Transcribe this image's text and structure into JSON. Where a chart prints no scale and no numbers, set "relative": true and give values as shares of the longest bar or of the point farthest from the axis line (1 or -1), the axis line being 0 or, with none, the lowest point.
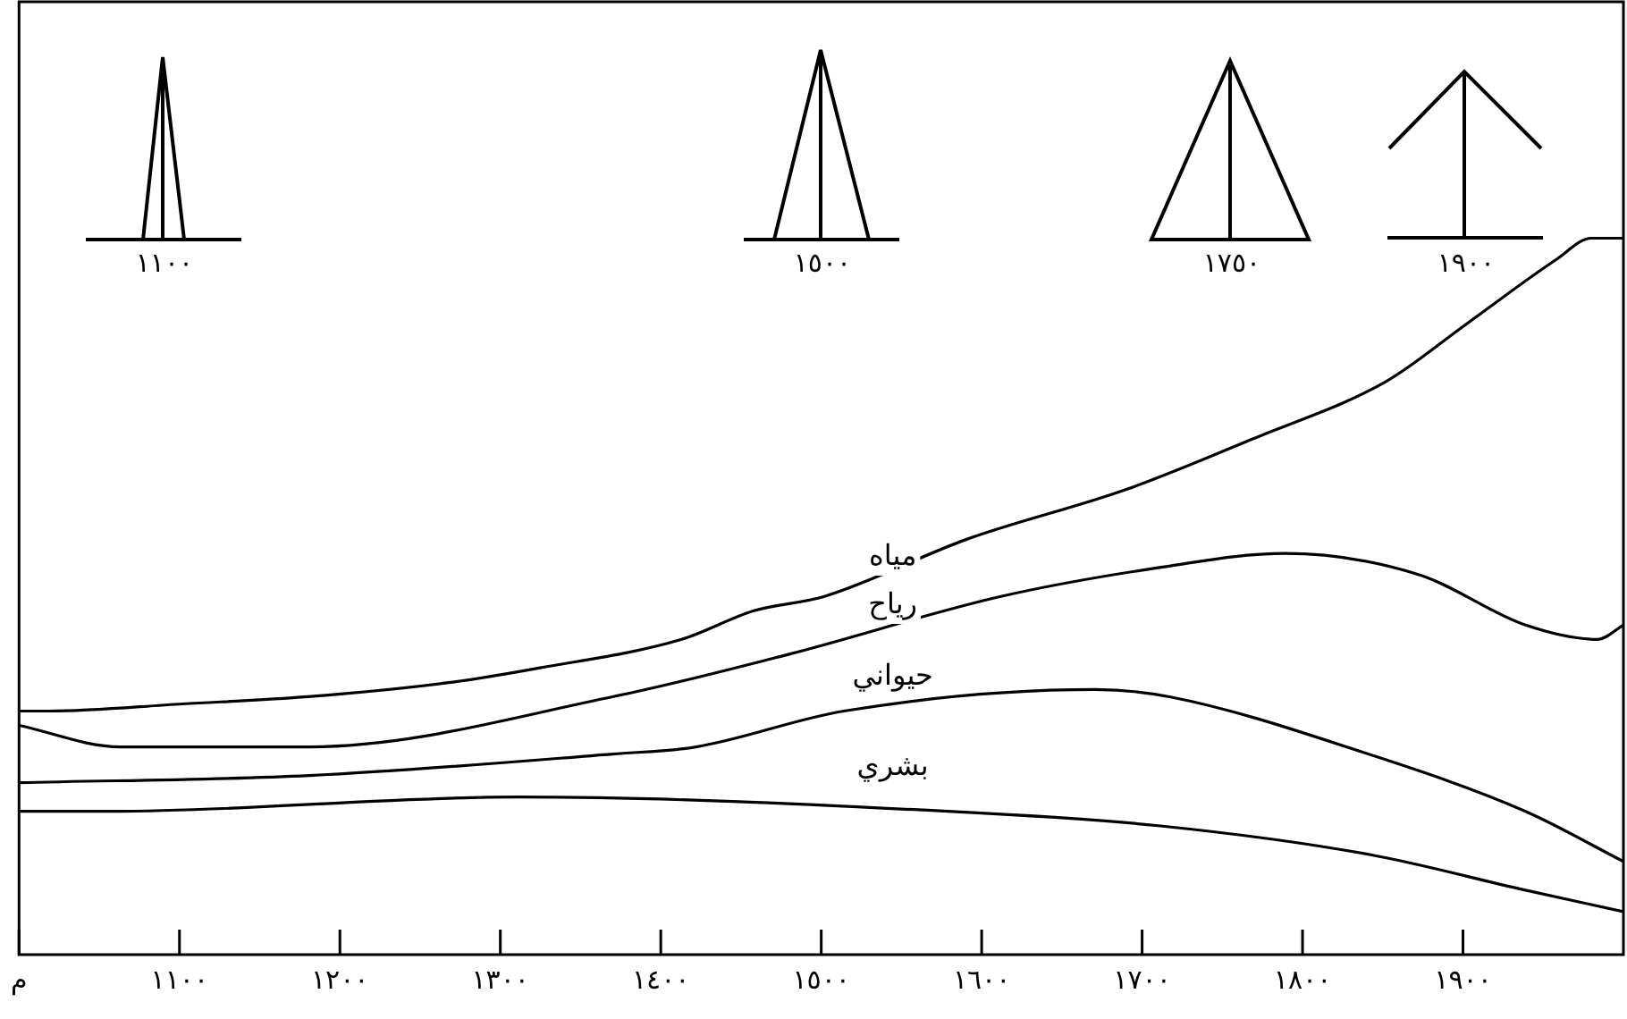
{
  "chart_data": {
    "type": "line",
    "relative": true,
    "grid": false,
    "legend": false,
    "marker": "none",
    "line_style": "solid",
    "xlim": [
      1000,
      2000
    ],
    "xticks": [
      {
        "value": 1000,
        "label": "م"
      },
      {
        "value": 1100,
        "label": "١١٠٠"
      },
      {
        "value": 1200,
        "label": "١٢٠٠"
      },
      {
        "value": 1300,
        "label": "١٣٠٠"
      },
      {
        "value": 1400,
        "label": "١٤٠٠"
      },
      {
        "value": 1500,
        "label": "١٥٠٠"
      },
      {
        "value": 1600,
        "label": "١٦٠٠"
      },
      {
        "value": 1700,
        "label": "١٧٠٠"
      },
      {
        "value": 1800,
        "label": "١٨٠٠"
      },
      {
        "value": 1900,
        "label": "١٩٠٠"
      }
    ],
    "annotations": [
      "١١٠٠",
      "١٥٠٠",
      "١٧٥٠",
      "١٩٠٠"
    ],
    "series": [
      {
        "name": "مياه",
        "color": "#000000",
        "x": [
          1000,
          1019,
          1102,
          1180,
          1269,
          1324,
          1413,
          1458,
          1502,
          1591,
          1691,
          1769,
          1852,
          1902,
          1958,
          1980,
          2000
        ],
        "values": [
          0.34,
          0.34,
          0.35,
          0.36,
          0.38,
          0.4,
          0.44,
          0.48,
          0.5,
          0.58,
          0.65,
          0.72,
          0.8,
          0.88,
          0.97,
          1,
          1
        ]
      },
      {
        "name": "رياح",
        "color": "#000000",
        "x": [
          1000,
          1063,
          1181,
          1370,
          1481,
          1612,
          1710,
          1789,
          1873,
          1939,
          1984,
          2000
        ],
        "values": [
          0.32,
          0.29,
          0.29,
          0.36,
          0.42,
          0.5,
          0.54,
          0.56,
          0.53,
          0.46,
          0.44,
          0.46
        ]
      },
      {
        "name": "حيواني",
        "color": "#000000",
        "x": [
          1000,
          1181,
          1370,
          1422,
          1514,
          1671,
          1717,
          1841,
          1939,
          2000
        ],
        "values": [
          0.24,
          0.25,
          0.28,
          0.29,
          0.34,
          0.37,
          0.36,
          0.28,
          0.2,
          0.13
        ]
      },
      {
        "name": "بشري",
        "color": "#000000",
        "x": [
          1000,
          1057,
          1311,
          1579,
          1710,
          1841,
          1939,
          2000
        ],
        "values": [
          0.2,
          0.2,
          0.22,
          0.2,
          0.18,
          0.14,
          0.09,
          0.06
        ]
      }
    ]
  }
}
